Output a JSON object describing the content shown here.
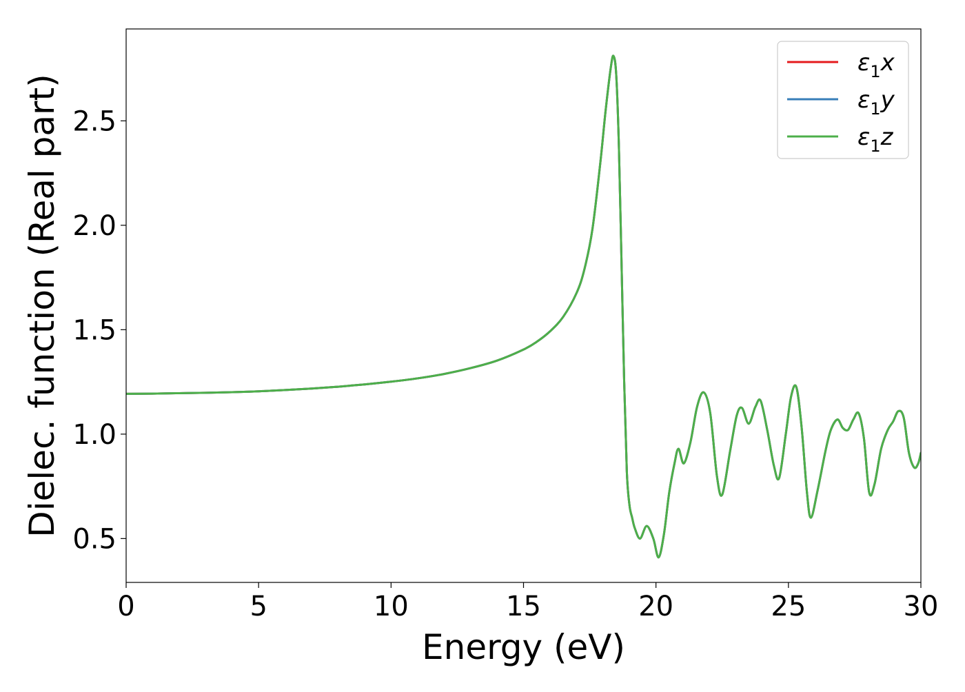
{
  "chart_data": {
    "type": "line",
    "title": "",
    "xlabel": "Energy (eV)",
    "ylabel": "Dielec. function (Real part)",
    "xlim": [
      0,
      30
    ],
    "ylim": [
      0.29,
      2.94
    ],
    "xticks": [
      0,
      5,
      10,
      15,
      20,
      25,
      30
    ],
    "xtick_labels": [
      "0",
      "5",
      "10",
      "15",
      "20",
      "25",
      "30"
    ],
    "yticks": [
      0.5,
      1.0,
      1.5,
      2.0,
      2.5
    ],
    "ytick_labels": [
      "0.5",
      "1.0",
      "1.5",
      "2.0",
      "2.5"
    ],
    "grid": false,
    "legend_placement": "top-right",
    "x": [
      0,
      1,
      2,
      3,
      4,
      5,
      6,
      7,
      8,
      9,
      10,
      11,
      12,
      13,
      14,
      15,
      15.5,
      16,
      16.5,
      17,
      17.3,
      17.6,
      17.9,
      18.1,
      18.3,
      18.4,
      18.5,
      18.6,
      18.7,
      18.8,
      18.9,
      19.0,
      19.1,
      19.2,
      19.4,
      19.65,
      19.9,
      20.1,
      20.3,
      20.5,
      20.7,
      20.85,
      21.05,
      21.3,
      21.55,
      21.8,
      22.05,
      22.3,
      22.5,
      22.8,
      23.05,
      23.25,
      23.5,
      23.75,
      23.95,
      24.2,
      24.45,
      24.65,
      24.9,
      25.1,
      25.3,
      25.5,
      25.7,
      25.85,
      26.1,
      26.4,
      26.6,
      26.85,
      27.05,
      27.25,
      27.45,
      27.65,
      27.85,
      28.05,
      28.25,
      28.5,
      28.75,
      28.95,
      29.15,
      29.35,
      29.55,
      29.75,
      29.9,
      30.0
    ],
    "series": [
      {
        "name": "ε₁x",
        "color": "#e41a1c",
        "values": [
          1.193,
          1.194,
          1.196,
          1.198,
          1.201,
          1.205,
          1.211,
          1.218,
          1.227,
          1.238,
          1.251,
          1.267,
          1.288,
          1.316,
          1.352,
          1.405,
          1.442,
          1.492,
          1.562,
          1.675,
          1.79,
          1.98,
          2.3,
          2.55,
          2.76,
          2.81,
          2.72,
          2.38,
          1.82,
          1.25,
          0.82,
          0.66,
          0.6,
          0.55,
          0.5,
          0.56,
          0.5,
          0.41,
          0.52,
          0.72,
          0.86,
          0.93,
          0.86,
          0.96,
          1.13,
          1.2,
          1.1,
          0.8,
          0.71,
          0.92,
          1.09,
          1.125,
          1.05,
          1.13,
          1.16,
          1.02,
          0.85,
          0.79,
          1.0,
          1.18,
          1.225,
          1.03,
          0.72,
          0.6,
          0.73,
          0.92,
          1.02,
          1.07,
          1.03,
          1.02,
          1.07,
          1.1,
          0.98,
          0.72,
          0.76,
          0.93,
          1.02,
          1.06,
          1.11,
          1.08,
          0.91,
          0.84,
          0.86,
          0.91
        ]
      },
      {
        "name": "ε₁y",
        "color": "#377eb8",
        "values": [
          1.193,
          1.194,
          1.196,
          1.198,
          1.201,
          1.205,
          1.211,
          1.218,
          1.227,
          1.238,
          1.251,
          1.267,
          1.288,
          1.316,
          1.352,
          1.405,
          1.442,
          1.492,
          1.562,
          1.675,
          1.79,
          1.98,
          2.3,
          2.55,
          2.76,
          2.81,
          2.72,
          2.38,
          1.82,
          1.25,
          0.82,
          0.66,
          0.6,
          0.55,
          0.5,
          0.56,
          0.5,
          0.41,
          0.52,
          0.72,
          0.86,
          0.93,
          0.86,
          0.96,
          1.13,
          1.2,
          1.1,
          0.8,
          0.71,
          0.92,
          1.09,
          1.125,
          1.05,
          1.13,
          1.16,
          1.02,
          0.85,
          0.79,
          1.0,
          1.18,
          1.225,
          1.03,
          0.72,
          0.6,
          0.73,
          0.92,
          1.02,
          1.07,
          1.03,
          1.02,
          1.07,
          1.1,
          0.98,
          0.72,
          0.76,
          0.93,
          1.02,
          1.06,
          1.11,
          1.08,
          0.91,
          0.84,
          0.86,
          0.91
        ]
      },
      {
        "name": "ε₁z",
        "color": "#4daf4a",
        "values": [
          1.193,
          1.194,
          1.196,
          1.198,
          1.201,
          1.205,
          1.211,
          1.218,
          1.227,
          1.238,
          1.251,
          1.267,
          1.288,
          1.316,
          1.352,
          1.405,
          1.442,
          1.492,
          1.562,
          1.675,
          1.79,
          1.98,
          2.3,
          2.55,
          2.76,
          2.81,
          2.72,
          2.38,
          1.82,
          1.25,
          0.82,
          0.66,
          0.6,
          0.55,
          0.5,
          0.56,
          0.5,
          0.41,
          0.52,
          0.72,
          0.86,
          0.93,
          0.86,
          0.96,
          1.13,
          1.2,
          1.1,
          0.8,
          0.71,
          0.92,
          1.09,
          1.125,
          1.05,
          1.13,
          1.16,
          1.02,
          0.85,
          0.79,
          1.0,
          1.18,
          1.225,
          1.03,
          0.72,
          0.6,
          0.73,
          0.92,
          1.02,
          1.07,
          1.03,
          1.02,
          1.07,
          1.1,
          0.98,
          0.72,
          0.76,
          0.93,
          1.02,
          1.06,
          1.11,
          1.08,
          0.91,
          0.84,
          0.86,
          0.91
        ]
      }
    ],
    "legend": [
      {
        "symbol": "ε",
        "subscript": "1",
        "axis": "x"
      },
      {
        "symbol": "ε",
        "subscript": "1",
        "axis": "y"
      },
      {
        "symbol": "ε",
        "subscript": "1",
        "axis": "z"
      }
    ]
  }
}
